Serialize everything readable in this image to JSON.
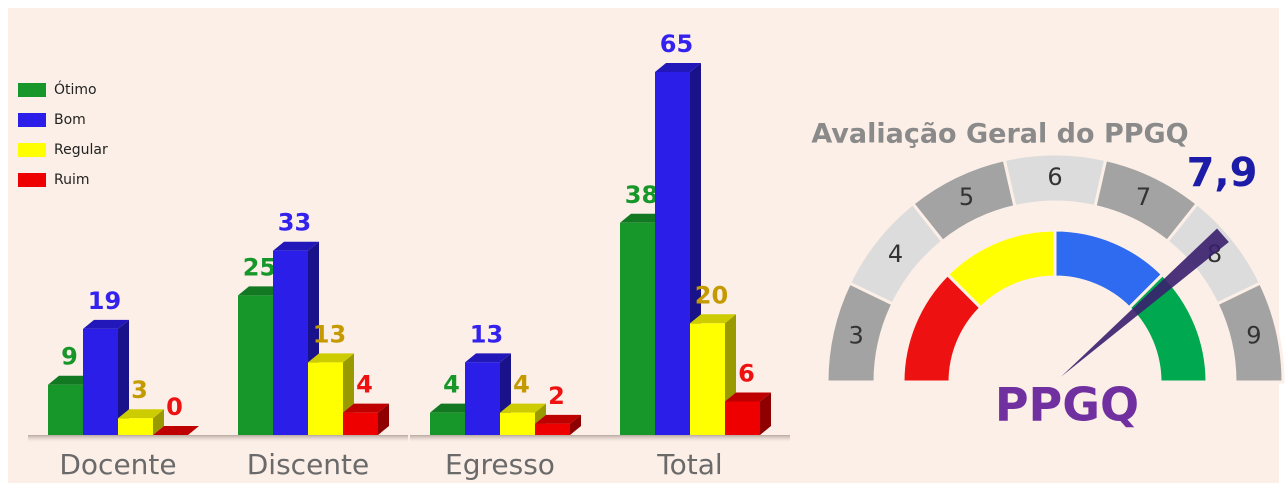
{
  "chart_data": [
    {
      "type": "bar",
      "categories": [
        "Docente",
        "Discente",
        "Egresso",
        "Total"
      ],
      "series": [
        {
          "name": "Ótimo",
          "color": "#17962a",
          "label_color": "#17962a",
          "values": [
            9,
            25,
            4,
            38
          ]
        },
        {
          "name": "Bom",
          "color": "#2a1ee8",
          "label_color": "#3322ee",
          "values": [
            19,
            33,
            13,
            65
          ]
        },
        {
          "name": "Regular",
          "color": "#ffff00",
          "label_color": "#c49a00",
          "values": [
            3,
            13,
            4,
            20
          ]
        },
        {
          "name": "Ruim",
          "color": "#ee0000",
          "label_color": "#ee1111",
          "values": [
            0,
            4,
            2,
            6
          ]
        }
      ]
    },
    {
      "type": "gauge",
      "title": "Avaliação Geral do PPGQ",
      "values": [
        7.9
      ],
      "value_labels": [
        "7,9"
      ],
      "xlim": [
        2.5,
        9.5
      ],
      "xticks": [
        3,
        4,
        5,
        6,
        7,
        8,
        9
      ],
      "label": "PPGQ"
    }
  ]
}
